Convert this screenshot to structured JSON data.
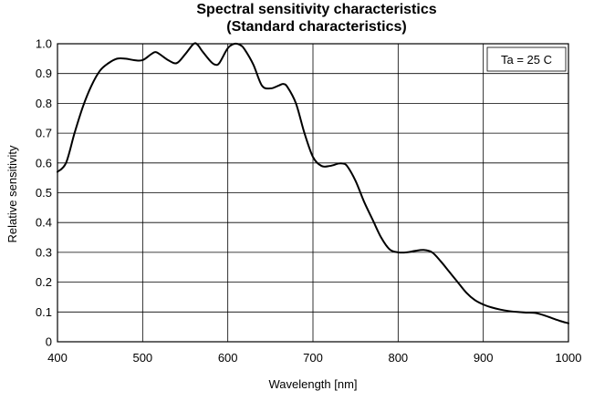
{
  "chart_data": {
    "type": "line",
    "title": "Spectral sensitivity characteristics",
    "subtitle": "(Standard characteristics)",
    "xlabel": "Wavelength [nm]",
    "ylabel": "Relative sensitivity",
    "xlim": [
      400,
      1000
    ],
    "ylim": [
      0,
      1.0
    ],
    "xticks": [
      400,
      500,
      600,
      700,
      800,
      900,
      1000
    ],
    "yticks": [
      0,
      0.1,
      0.2,
      0.3,
      0.4,
      0.5,
      0.6,
      0.7,
      0.8,
      0.9,
      1.0
    ],
    "ytick_labels": [
      "0",
      "0.1",
      "0.2",
      "0.3",
      "0.4",
      "0.5",
      "0.6",
      "0.7",
      "0.8",
      "0.9",
      "1.0"
    ],
    "grid": true,
    "annotation": "Ta = 25 C",
    "annotation_position": "top-right",
    "series": [
      {
        "x": [
          400,
          410,
          420,
          430,
          440,
          450,
          460,
          470,
          480,
          490,
          500,
          510,
          515,
          520,
          530,
          540,
          550,
          560,
          565,
          570,
          580,
          585,
          590,
          600,
          608,
          615,
          620,
          630,
          640,
          650,
          660,
          665,
          670,
          680,
          690,
          700,
          710,
          720,
          730,
          735,
          740,
          750,
          760,
          770,
          780,
          790,
          800,
          810,
          820,
          830,
          840,
          850,
          860,
          870,
          880,
          890,
          900,
          910,
          920,
          930,
          940,
          950,
          960,
          970,
          980,
          990,
          1000
        ],
        "y": [
          0.57,
          0.6,
          0.7,
          0.79,
          0.86,
          0.91,
          0.935,
          0.95,
          0.95,
          0.945,
          0.945,
          0.965,
          0.972,
          0.965,
          0.945,
          0.935,
          0.965,
          1.0,
          0.995,
          0.975,
          0.94,
          0.93,
          0.935,
          0.985,
          1.0,
          0.995,
          0.98,
          0.93,
          0.86,
          0.85,
          0.86,
          0.865,
          0.855,
          0.8,
          0.7,
          0.62,
          0.59,
          0.59,
          0.598,
          0.598,
          0.59,
          0.54,
          0.47,
          0.41,
          0.35,
          0.31,
          0.3,
          0.3,
          0.305,
          0.308,
          0.3,
          0.27,
          0.235,
          0.2,
          0.165,
          0.14,
          0.125,
          0.115,
          0.108,
          0.103,
          0.1,
          0.098,
          0.097,
          0.09,
          0.08,
          0.07,
          0.062
        ]
      }
    ]
  }
}
